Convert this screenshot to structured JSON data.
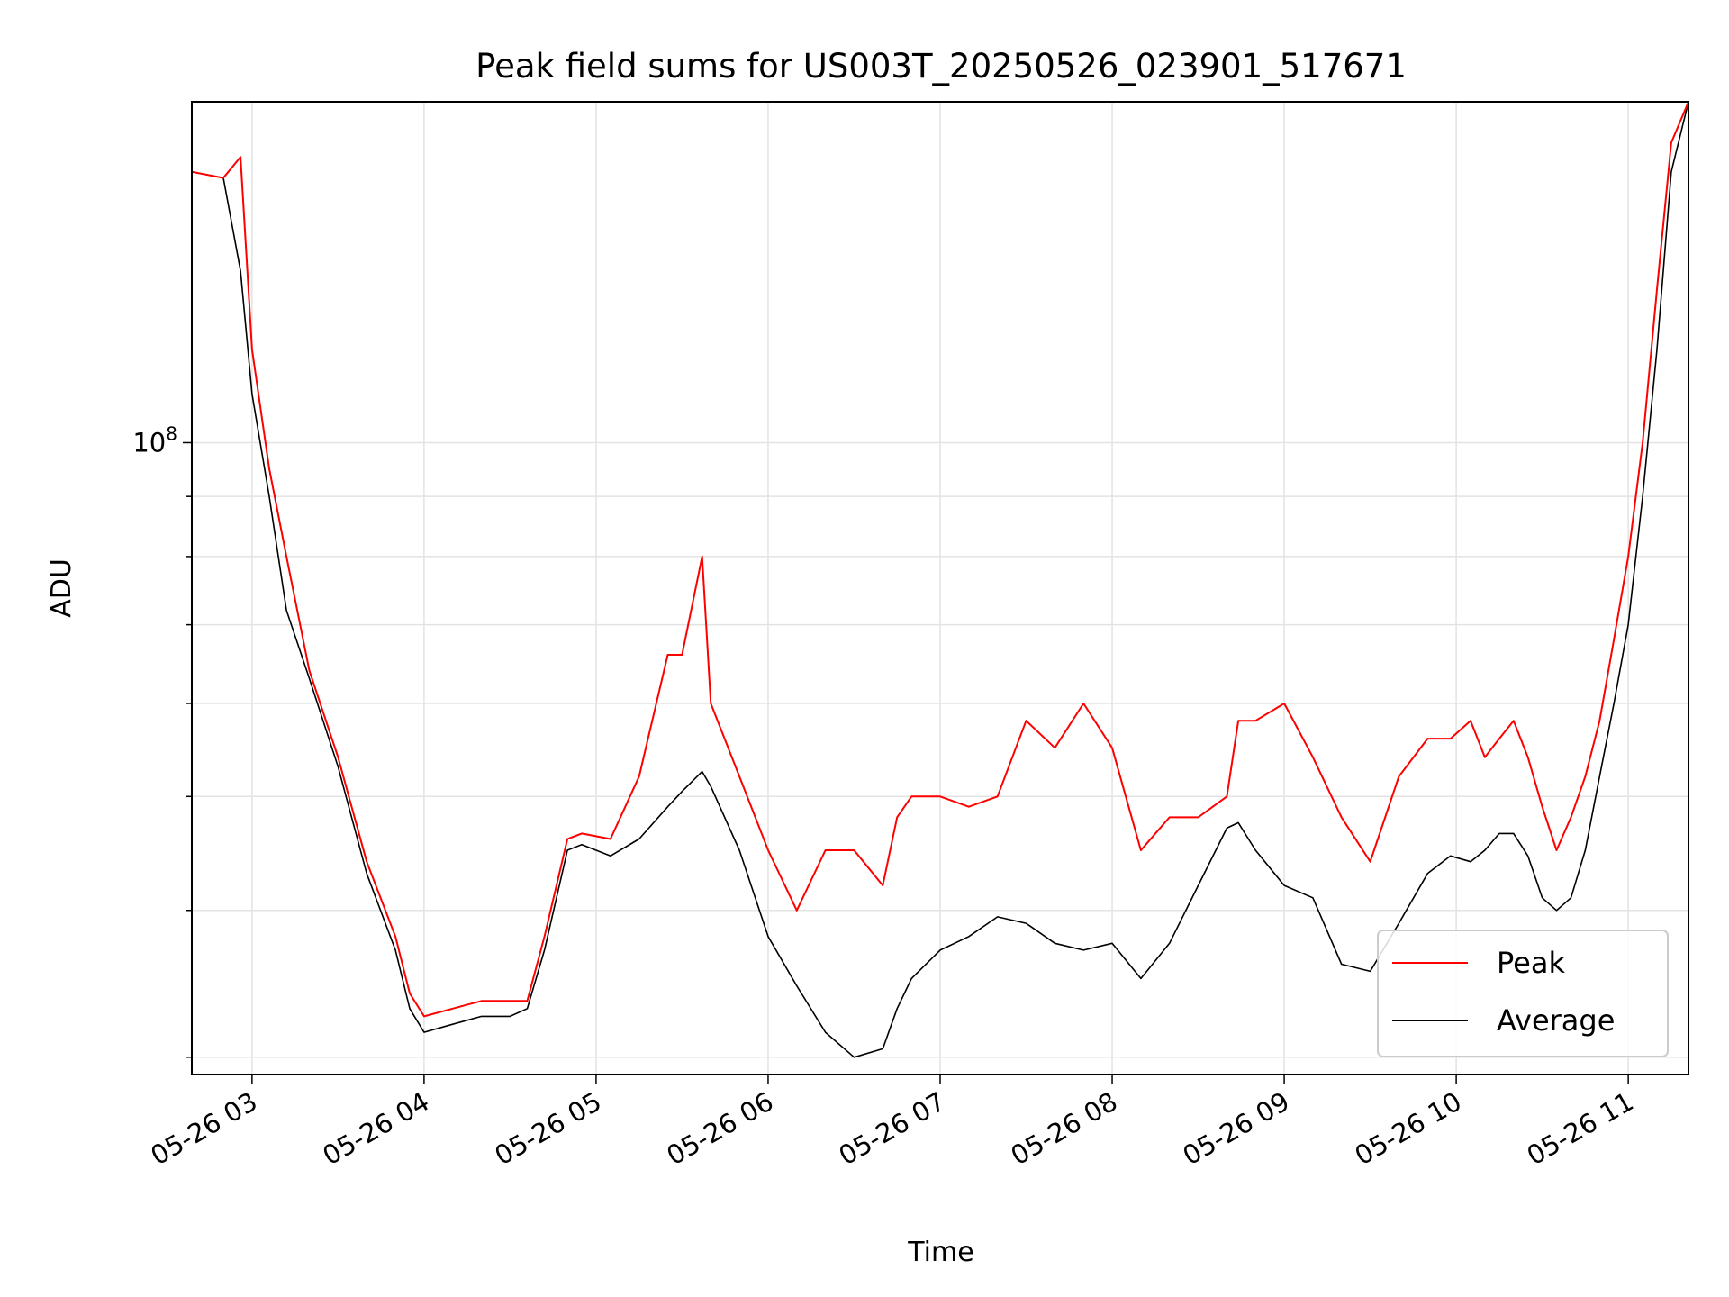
{
  "chart_data": {
    "type": "line",
    "title": "Peak field sums for US003T_20250526_023901_517671",
    "xlabel": "Time",
    "ylabel": "ADU",
    "yscale": "log",
    "xlim": [
      "05-26 02:39",
      "05-26 11:21"
    ],
    "ylim": [
      29000000,
      195000000
    ],
    "x_ticks": [
      "05-26 03",
      "05-26 04",
      "05-26 05",
      "05-26 06",
      "05-26 07",
      "05-26 08",
      "05-26 09",
      "05-26 10",
      "05-26 11"
    ],
    "y_ticks": [
      {
        "value": 100000000,
        "label": "10^8"
      }
    ],
    "grid": true,
    "legend": {
      "placement": "lower right",
      "entries": [
        "Peak",
        "Average"
      ]
    },
    "series": [
      {
        "name": "Average",
        "color": "#000000",
        "x": [
          "02:39",
          "02:50",
          "02:56",
          "03:00",
          "03:06",
          "03:12",
          "03:20",
          "03:30",
          "03:40",
          "03:50",
          "03:55",
          "04:00",
          "04:10",
          "04:20",
          "04:30",
          "04:36",
          "04:42",
          "04:50",
          "04:55",
          "05:05",
          "05:15",
          "05:25",
          "05:30",
          "05:37",
          "05:40",
          "05:50",
          "06:00",
          "06:10",
          "06:20",
          "06:30",
          "06:40",
          "06:45",
          "06:50",
          "07:00",
          "07:10",
          "07:20",
          "07:30",
          "07:40",
          "07:50",
          "08:00",
          "08:10",
          "08:20",
          "08:30",
          "08:40",
          "08:44",
          "08:50",
          "09:00",
          "09:10",
          "09:20",
          "09:30",
          "09:40",
          "09:50",
          "09:58",
          "10:05",
          "10:10",
          "10:15",
          "10:20",
          "10:25",
          "10:30",
          "10:35",
          "10:40",
          "10:45",
          "10:50",
          "10:55",
          "11:00",
          "11:05",
          "11:10",
          "11:15",
          "11:21"
        ],
        "values": [
          170000000,
          168000000,
          140000000,
          110000000,
          90000000,
          72000000,
          63000000,
          53000000,
          43000000,
          37000000,
          33000000,
          31500000,
          32000000,
          32500000,
          32500000,
          33000000,
          37000000,
          45000000,
          45500000,
          44500000,
          46000000,
          49000000,
          50500000,
          52500000,
          51000000,
          45000000,
          38000000,
          34500000,
          31500000,
          30000000,
          30500000,
          33000000,
          35000000,
          37000000,
          38000000,
          39500000,
          39000000,
          37500000,
          37000000,
          37500000,
          35000000,
          37500000,
          42000000,
          47000000,
          47500000,
          45000000,
          42000000,
          41000000,
          36000000,
          35500000,
          39000000,
          43000000,
          44500000,
          44000000,
          45000000,
          46500000,
          46500000,
          44500000,
          41000000,
          40000000,
          41000000,
          45000000,
          52000000,
          60000000,
          70000000,
          90000000,
          120000000,
          170000000,
          195000000
        ]
      },
      {
        "name": "Peak",
        "color": "#ff0000",
        "x": [
          "02:39",
          "02:50",
          "02:56",
          "03:00",
          "03:06",
          "03:12",
          "03:20",
          "03:30",
          "03:40",
          "03:50",
          "03:55",
          "04:00",
          "04:10",
          "04:20",
          "04:30",
          "04:36",
          "04:42",
          "04:50",
          "04:55",
          "05:05",
          "05:15",
          "05:25",
          "05:30",
          "05:37",
          "05:40",
          "05:50",
          "06:00",
          "06:10",
          "06:20",
          "06:30",
          "06:40",
          "06:45",
          "06:50",
          "07:00",
          "07:10",
          "07:20",
          "07:30",
          "07:40",
          "07:50",
          "08:00",
          "08:10",
          "08:20",
          "08:30",
          "08:40",
          "08:44",
          "08:50",
          "09:00",
          "09:10",
          "09:20",
          "09:30",
          "09:40",
          "09:50",
          "09:58",
          "10:05",
          "10:10",
          "10:15",
          "10:20",
          "10:25",
          "10:30",
          "10:35",
          "10:40",
          "10:45",
          "10:50",
          "10:55",
          "11:00",
          "11:05",
          "11:10",
          "11:15",
          "11:21"
        ],
        "values": [
          170000000,
          168000000,
          175000000,
          120000000,
          95000000,
          80000000,
          64000000,
          54000000,
          44000000,
          38000000,
          34000000,
          32500000,
          33000000,
          33500000,
          33500000,
          33500000,
          38000000,
          46000000,
          46500000,
          46000000,
          52000000,
          66000000,
          66000000,
          80000000,
          60000000,
          52000000,
          45000000,
          40000000,
          45000000,
          45000000,
          42000000,
          48000000,
          50000000,
          50000000,
          49000000,
          50000000,
          58000000,
          55000000,
          60000000,
          55000000,
          45000000,
          48000000,
          48000000,
          50000000,
          58000000,
          58000000,
          60000000,
          54000000,
          48000000,
          44000000,
          52000000,
          56000000,
          56000000,
          58000000,
          54000000,
          56000000,
          58000000,
          54000000,
          49000000,
          45000000,
          48000000,
          52000000,
          58000000,
          68000000,
          80000000,
          100000000,
          135000000,
          180000000,
          195000000
        ]
      }
    ]
  }
}
